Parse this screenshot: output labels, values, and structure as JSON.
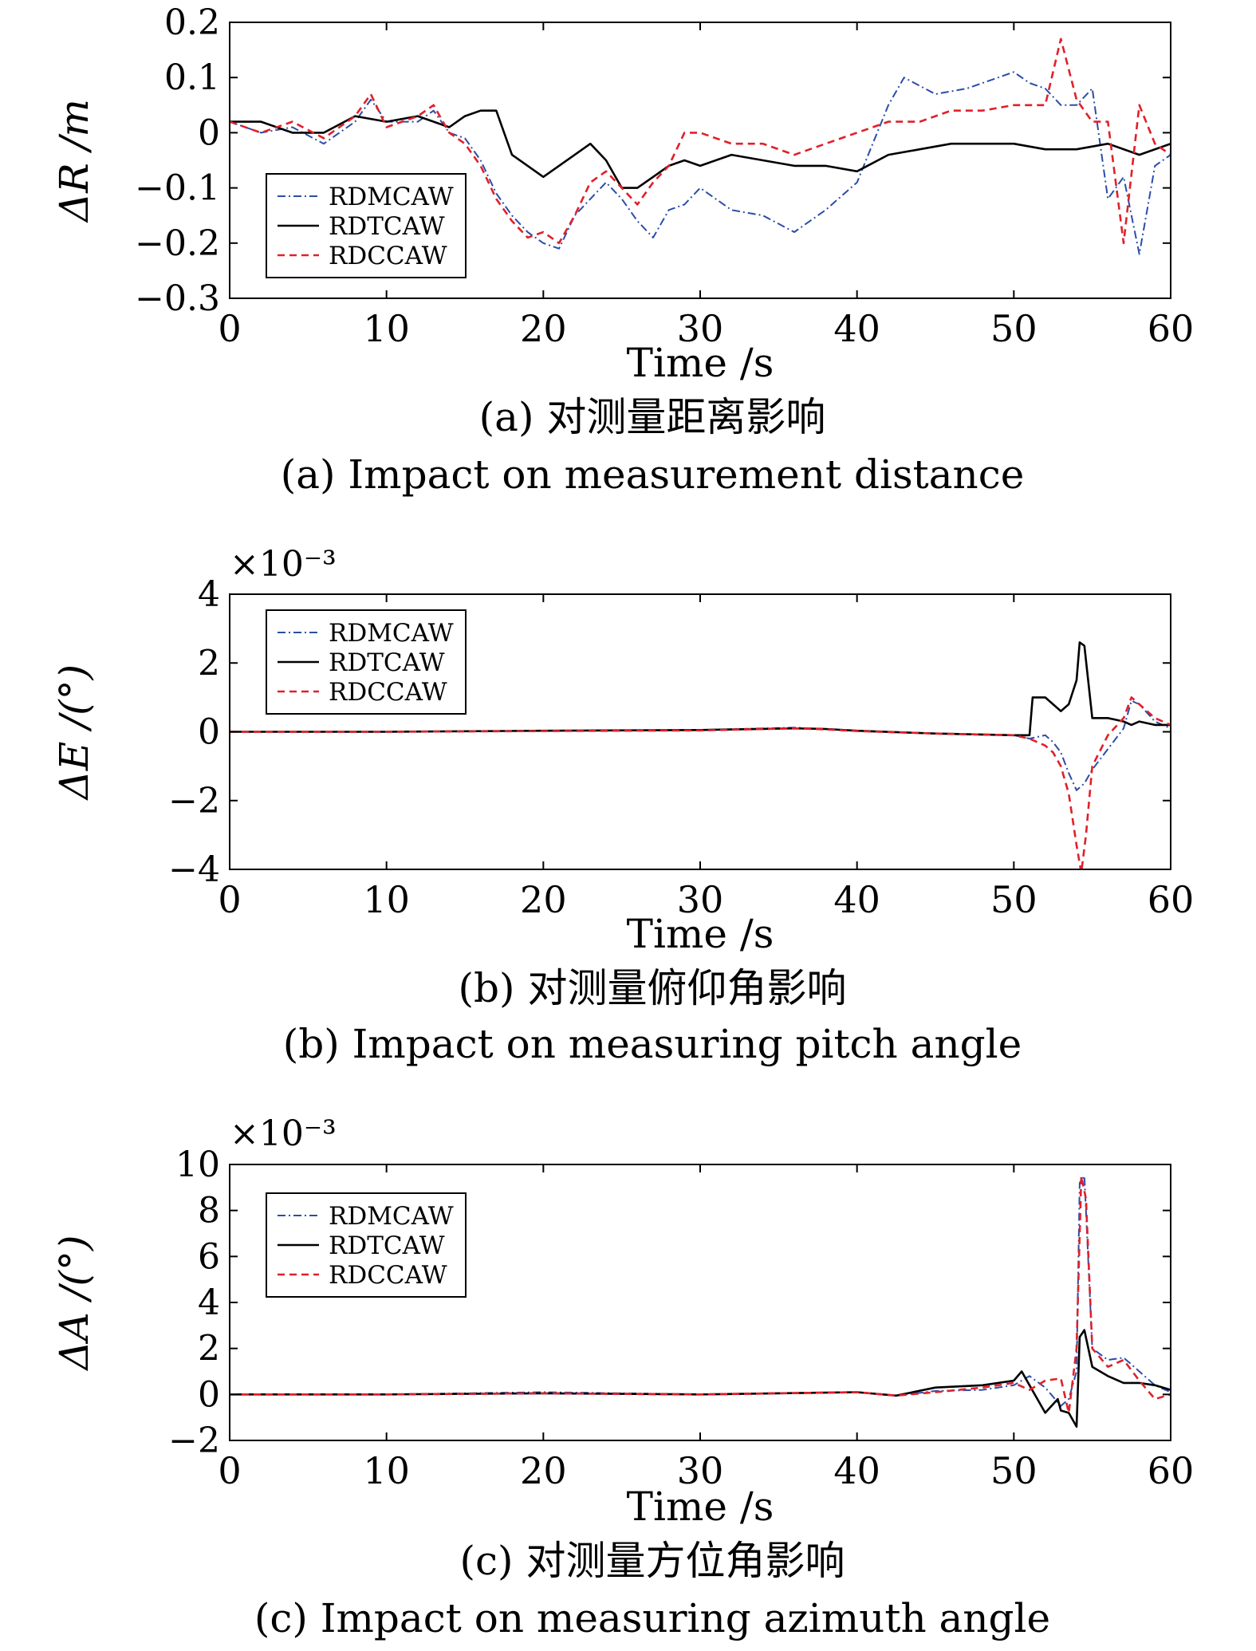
{
  "series_styles": [
    {
      "name": "RDMCAW",
      "color": "#2b4da8",
      "dash": "10 4 2 4",
      "width": 2
    },
    {
      "name": "RDTCAW",
      "color": "#000000",
      "dash": "",
      "width": 2.6
    },
    {
      "name": "RDCCAW",
      "color": "#e0202a",
      "dash": "9 6",
      "width": 2.6
    }
  ],
  "chart_data": [
    {
      "type": "line",
      "xlabel": "Time /s",
      "ylabel": "ΔR /m",
      "multiplier": "",
      "xlim": [
        0,
        60
      ],
      "ylim": [
        -0.3,
        0.2
      ],
      "xticks": [
        0,
        10,
        20,
        30,
        40,
        50,
        60
      ],
      "yticks": [
        -0.3,
        -0.2,
        -0.1,
        0,
        0.1,
        0.2
      ],
      "ytick_labels": [
        "−0.3",
        "−0.2",
        "−0.1",
        "0",
        "0.1",
        "0.2"
      ],
      "caption_cn": "(a) 对测量距离影响",
      "caption_en": "(a) Impact on measurement distance",
      "legend": [
        "RDMCAW",
        "RDTCAW",
        "RDCCAW"
      ],
      "series": [
        {
          "name": "RDMCAW",
          "x": [
            0,
            2,
            4,
            6,
            8,
            9,
            10,
            12,
            13,
            14,
            15,
            16,
            17,
            18,
            19,
            20,
            21,
            22,
            23,
            24,
            25,
            26,
            27,
            28,
            29,
            30,
            32,
            34,
            36,
            38,
            40,
            42,
            43,
            45,
            47,
            49,
            50,
            51,
            52,
            53,
            54,
            55,
            56,
            57,
            58,
            59,
            60
          ],
          "y": [
            0.02,
            0.0,
            0.01,
            -0.02,
            0.02,
            0.06,
            0.02,
            0.02,
            0.04,
            0.0,
            -0.01,
            -0.05,
            -0.11,
            -0.15,
            -0.18,
            -0.2,
            -0.21,
            -0.15,
            -0.12,
            -0.09,
            -0.12,
            -0.16,
            -0.19,
            -0.14,
            -0.13,
            -0.1,
            -0.14,
            -0.15,
            -0.18,
            -0.14,
            -0.09,
            0.05,
            0.1,
            0.07,
            0.08,
            0.1,
            0.11,
            0.09,
            0.08,
            0.05,
            0.05,
            0.08,
            -0.12,
            -0.08,
            -0.22,
            -0.06,
            -0.04
          ]
        },
        {
          "name": "RDTCAW",
          "x": [
            0,
            2,
            4,
            6,
            8,
            10,
            12,
            14,
            15,
            16,
            17,
            18,
            19,
            20,
            21,
            22,
            23,
            24,
            25,
            26,
            27,
            28,
            29,
            30,
            32,
            34,
            36,
            38,
            40,
            42,
            44,
            46,
            48,
            50,
            52,
            54,
            56,
            58,
            60
          ],
          "y": [
            0.02,
            0.02,
            0.0,
            0.0,
            0.03,
            0.02,
            0.03,
            0.01,
            0.03,
            0.04,
            0.04,
            -0.04,
            -0.06,
            -0.08,
            -0.06,
            -0.04,
            -0.02,
            -0.05,
            -0.1,
            -0.1,
            -0.08,
            -0.06,
            -0.05,
            -0.06,
            -0.04,
            -0.05,
            -0.06,
            -0.06,
            -0.07,
            -0.04,
            -0.03,
            -0.02,
            -0.02,
            -0.02,
            -0.03,
            -0.03,
            -0.02,
            -0.04,
            -0.02
          ]
        },
        {
          "name": "RDCCAW",
          "x": [
            0,
            2,
            4,
            6,
            8,
            9,
            10,
            12,
            13,
            14,
            15,
            16,
            17,
            18,
            19,
            20,
            21,
            22,
            23,
            24,
            25,
            26,
            27,
            28,
            29,
            30,
            32,
            34,
            36,
            38,
            40,
            42,
            44,
            46,
            48,
            50,
            52,
            53,
            54,
            55,
            56,
            57,
            58,
            59,
            60
          ],
          "y": [
            0.02,
            0.0,
            0.02,
            -0.01,
            0.03,
            0.07,
            0.01,
            0.03,
            0.05,
            0.0,
            -0.02,
            -0.06,
            -0.12,
            -0.16,
            -0.19,
            -0.18,
            -0.2,
            -0.15,
            -0.09,
            -0.07,
            -0.1,
            -0.13,
            -0.09,
            -0.06,
            0.0,
            0.0,
            -0.02,
            -0.02,
            -0.04,
            -0.02,
            0.0,
            0.02,
            0.02,
            0.04,
            0.04,
            0.05,
            0.05,
            0.17,
            0.06,
            0.02,
            0.02,
            -0.2,
            0.05,
            -0.02,
            -0.04
          ]
        }
      ]
    },
    {
      "type": "line",
      "xlabel": "Time /s",
      "ylabel": "ΔE /(°)",
      "multiplier": "×10⁻³",
      "xlim": [
        0,
        60
      ],
      "ylim": [
        -4,
        4
      ],
      "xticks": [
        0,
        10,
        20,
        30,
        40,
        50,
        60
      ],
      "yticks": [
        -4,
        -2,
        0,
        2,
        4
      ],
      "ytick_labels": [
        "−4",
        "−2",
        "0",
        "2",
        "4"
      ],
      "caption_cn": "(b) 对测量俯仰角影响",
      "caption_en": "(b) Impact on measuring pitch angle",
      "legend": [
        "RDMCAW",
        "RDTCAW",
        "RDCCAW"
      ],
      "series": [
        {
          "name": "RDMCAW",
          "x": [
            0,
            10,
            20,
            30,
            36,
            38,
            40,
            45,
            50,
            51,
            52,
            52.5,
            53,
            53.5,
            54,
            54.5,
            55,
            56,
            57,
            57.5,
            58,
            59,
            60
          ],
          "y": [
            0,
            0,
            0.03,
            0.05,
            0.12,
            0.08,
            0.02,
            -0.05,
            -0.1,
            -0.2,
            -0.1,
            -0.3,
            -0.6,
            -1.2,
            -1.7,
            -1.5,
            -1.1,
            -0.5,
            0.1,
            0.9,
            0.8,
            0.3,
            0.1
          ]
        },
        {
          "name": "RDTCAW",
          "x": [
            0,
            10,
            20,
            30,
            36,
            38,
            40,
            45,
            50,
            51,
            51.2,
            52,
            52.5,
            53,
            53.5,
            54,
            54.2,
            54.5,
            55,
            56,
            57,
            57.5,
            58,
            59,
            60
          ],
          "y": [
            0,
            0,
            0.03,
            0.05,
            0.1,
            0.08,
            0.03,
            -0.05,
            -0.1,
            -0.1,
            1.0,
            1.0,
            0.8,
            0.6,
            0.8,
            1.5,
            2.6,
            2.5,
            0.4,
            0.4,
            0.3,
            0.2,
            0.3,
            0.2,
            0.2
          ]
        },
        {
          "name": "RDCCAW",
          "x": [
            0,
            10,
            20,
            30,
            36,
            38,
            40,
            45,
            50,
            51,
            52,
            52.5,
            53,
            53.5,
            54,
            54.3,
            54.6,
            55,
            56,
            57,
            57.5,
            58,
            59,
            60
          ],
          "y": [
            0,
            0,
            0.02,
            0.04,
            0.1,
            0.07,
            0.02,
            -0.05,
            -0.1,
            -0.2,
            -0.4,
            -0.6,
            -1.0,
            -1.8,
            -3.3,
            -4.1,
            -3.0,
            -1.0,
            -0.1,
            0.4,
            1.0,
            0.8,
            0.4,
            0.2
          ]
        }
      ]
    },
    {
      "type": "line",
      "xlabel": "Time /s",
      "ylabel": "ΔA /(°)",
      "multiplier": "×10⁻³",
      "xlim": [
        0,
        60
      ],
      "ylim": [
        -2,
        10
      ],
      "xticks": [
        0,
        10,
        20,
        30,
        40,
        50,
        60
      ],
      "yticks": [
        -2,
        0,
        2,
        4,
        6,
        8,
        10
      ],
      "ytick_labels": [
        "−2",
        "0",
        "2",
        "4",
        "6",
        "8",
        "10"
      ],
      "caption_cn": "(c) 对测量方位角影响",
      "caption_en": "(c) Impact on measuring azimuth angle",
      "legend": [
        "RDMCAW",
        "RDTCAW",
        "RDCCAW"
      ],
      "series": [
        {
          "name": "RDMCAW",
          "x": [
            0,
            10,
            20,
            30,
            40,
            42.5,
            45,
            48,
            50,
            51,
            52,
            53,
            53.5,
            54,
            54.2,
            54.5,
            55,
            56,
            57,
            58,
            59,
            60
          ],
          "y": [
            0,
            0,
            0.1,
            0.0,
            0.1,
            -0.05,
            0.15,
            0.2,
            0.4,
            0.8,
            0.3,
            -0.5,
            -0.2,
            1.0,
            9.2,
            9.5,
            2.0,
            1.5,
            1.6,
            1.0,
            0.4,
            0.1
          ]
        },
        {
          "name": "RDTCAW",
          "x": [
            0,
            10,
            20,
            30,
            40,
            42.5,
            45,
            48,
            50,
            50.5,
            51,
            52,
            52.8,
            53,
            53.5,
            54,
            54.2,
            54.5,
            55,
            56,
            57,
            58,
            59,
            60
          ],
          "y": [
            0,
            0,
            0.05,
            0.0,
            0.1,
            -0.05,
            0.3,
            0.4,
            0.6,
            1.0,
            0.4,
            -0.8,
            -0.2,
            -0.7,
            -0.8,
            -1.4,
            2.5,
            2.8,
            1.2,
            0.8,
            0.5,
            0.5,
            0.4,
            0.2
          ]
        },
        {
          "name": "RDCCAW",
          "x": [
            0,
            10,
            20,
            30,
            40,
            42.5,
            45,
            48,
            50,
            51,
            52,
            53,
            53.5,
            54,
            54.3,
            54.6,
            55,
            56,
            57,
            58,
            59,
            60
          ],
          "y": [
            0,
            0,
            0.05,
            0.0,
            0.1,
            -0.05,
            0.1,
            0.3,
            0.5,
            0.2,
            0.6,
            0.7,
            -0.8,
            2.0,
            9.5,
            8.5,
            2.0,
            1.2,
            1.5,
            0.6,
            -0.2,
            0.0
          ]
        }
      ]
    }
  ]
}
